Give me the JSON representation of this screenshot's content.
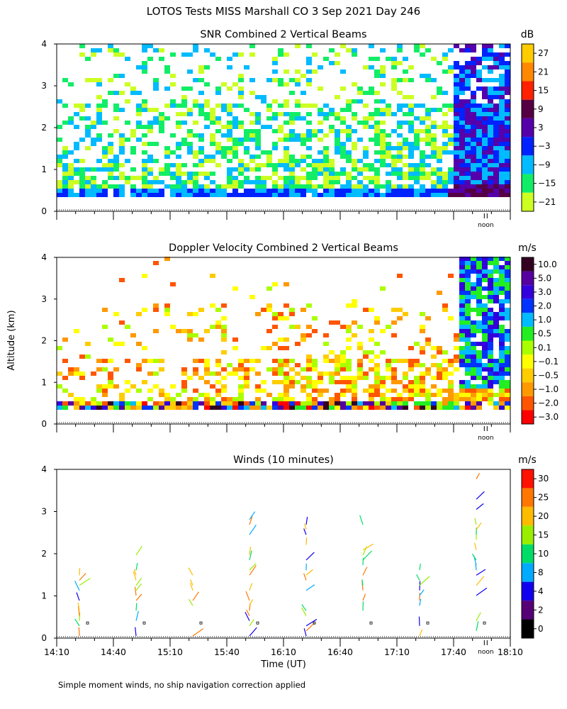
{
  "figure": {
    "main_title": "LOTOS Tests MISS Marshall CO   3 Sep 2021 Day 246",
    "y_axis_label": "Altitude (km)",
    "x_axis_label": "Time (UT)",
    "footnote": "Simple moment winds, no ship navigation correction applied",
    "noon_marker": "noon"
  },
  "chart_data": [
    {
      "id": "snr",
      "type": "heatmap",
      "title": "SNR Combined 2 Vertical Beams",
      "ylabel": "Altitude (km)",
      "ylim": [
        0,
        4
      ],
      "yticks": [
        "0",
        "1",
        "2",
        "3",
        "4"
      ],
      "xlim_minutes_utc": [
        850,
        1090
      ],
      "xticks": [],
      "colorbar": {
        "units": "dB",
        "labels": [
          "27",
          "21",
          "15",
          "9",
          "3",
          "−3",
          "−9",
          "−15",
          "−21"
        ],
        "colors": [
          "#ffcc00",
          "#ff8800",
          "#ff2200",
          "#550044",
          "#5500aa",
          "#0022ff",
          "#00bbff",
          "#11ee66",
          "#ccff22"
        ]
      }
    },
    {
      "id": "velocity",
      "type": "heatmap",
      "title": "Doppler Velocity Combined 2 Vertical Beams",
      "ylabel": "Altitude (km)",
      "ylim": [
        0,
        4
      ],
      "yticks": [
        "0",
        "1",
        "2",
        "3",
        "4"
      ],
      "xlim_minutes_utc": [
        850,
        1090
      ],
      "xticks": [],
      "colorbar": {
        "units": "m/s",
        "labels": [
          "10.0",
          "5.0",
          "3.0",
          "2.0",
          "1.0",
          "0.5",
          "0.1",
          "−0.1",
          "−0.5",
          "−1.0",
          "−2.0",
          "−3.0"
        ],
        "colors": [
          "#330022",
          "#55009f",
          "#3300dd",
          "#0033ff",
          "#00bbff",
          "#22ee22",
          "#aaff00",
          "#ffff00",
          "#ffcc00",
          "#ff9900",
          "#ff5500",
          "#ff0000"
        ]
      }
    },
    {
      "id": "winds",
      "type": "scatter",
      "title": "Winds (10 minutes)",
      "ylabel": "Altitude (km)",
      "ylim": [
        0,
        4
      ],
      "yticks": [
        "0",
        "1",
        "2",
        "3",
        "4"
      ],
      "xlim_minutes_utc": [
        850,
        1090
      ],
      "xticks": [
        "14:10",
        "14:40",
        "15:10",
        "15:40",
        "16:10",
        "16:40",
        "17:10",
        "17:40",
        "18:10"
      ],
      "colorbar": {
        "units": "m/s",
        "labels": [
          "30",
          "25",
          "20",
          "15",
          "10",
          "8",
          "4",
          "2",
          "0"
        ],
        "colors": [
          "#ff1100",
          "#ff7700",
          "#ffbb00",
          "#99ee00",
          "#00dd66",
          "#00aaff",
          "#1100ee",
          "#550077",
          "#000000"
        ]
      },
      "profiles_minutes_utc": [
        865,
        895,
        925,
        955,
        985,
        1015,
        1045,
        1075
      ]
    }
  ]
}
